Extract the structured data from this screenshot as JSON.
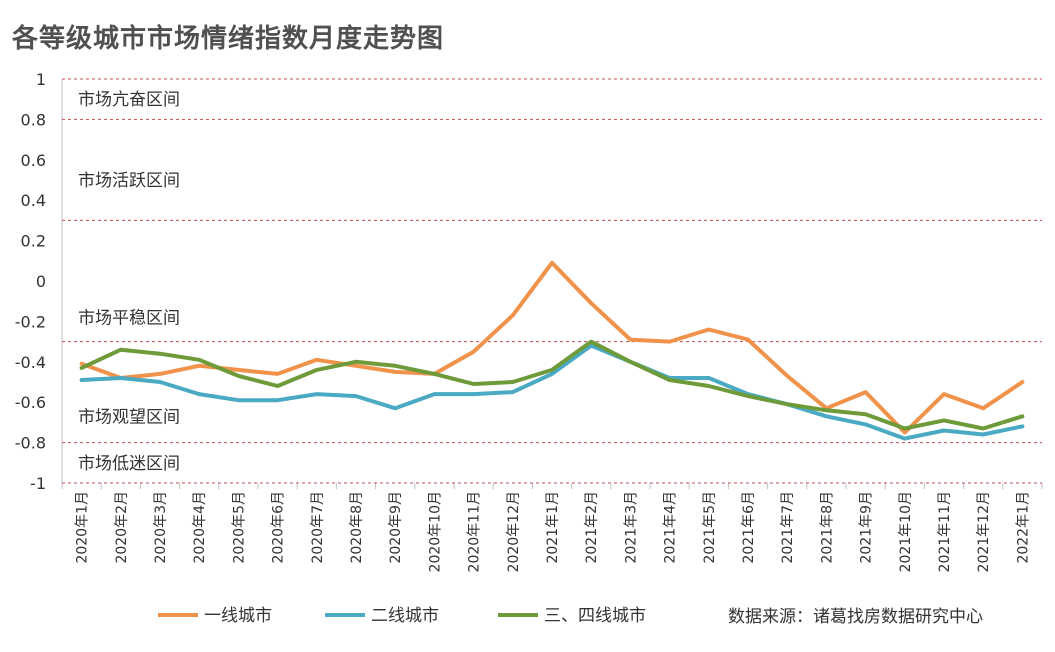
{
  "chart_data": {
    "type": "line",
    "title": "各等级城市市场情绪指数月度走势图",
    "x": [
      "2020年1月",
      "2020年2月",
      "2020年3月",
      "2020年4月",
      "2020年5月",
      "2020年6月",
      "2020年7月",
      "2020年8月",
      "2020年9月",
      "2020年10月",
      "2020年11月",
      "2020年12月",
      "2021年1月",
      "2021年2月",
      "2021年3月",
      "2021年4月",
      "2021年5月",
      "2021年6月",
      "2021年7月",
      "2021年8月",
      "2021年9月",
      "2021年10月",
      "2021年11月",
      "2021年12月",
      "2022年1月"
    ],
    "ylim": [
      -1,
      1
    ],
    "yticks": [
      "1",
      "0.8",
      "0.6",
      "0.4",
      "0.2",
      "0",
      "-0.2",
      "-0.4",
      "-0.6",
      "-0.8",
      "-1"
    ],
    "grid": false,
    "threshold_lines": [
      1,
      0.8,
      0.3,
      -0.3,
      -0.8,
      -1
    ],
    "zones": [
      {
        "label": "市场亢奋区间",
        "y": 0.9
      },
      {
        "label": "市场活跃区间",
        "y": 0.5
      },
      {
        "label": "市场平稳区间",
        "y": -0.18
      },
      {
        "label": "市场观望区间",
        "y": -0.67
      },
      {
        "label": "市场低迷区间",
        "y": -0.9
      }
    ],
    "series": [
      {
        "name": "一线城市",
        "color": "#F0924A",
        "values": [
          -0.41,
          -0.48,
          -0.46,
          -0.42,
          -0.44,
          -0.46,
          -0.39,
          -0.42,
          -0.45,
          -0.46,
          -0.35,
          -0.17,
          0.09,
          -0.11,
          -0.29,
          -0.3,
          -0.24,
          -0.29,
          -0.47,
          -0.63,
          -0.55,
          -0.75,
          -0.56,
          -0.63,
          -0.5
        ]
      },
      {
        "name": "二线城市",
        "color": "#4AAAC3",
        "values": [
          -0.49,
          -0.48,
          -0.5,
          -0.56,
          -0.59,
          -0.59,
          -0.56,
          -0.57,
          -0.63,
          -0.56,
          -0.56,
          -0.55,
          -0.46,
          -0.32,
          -0.4,
          -0.48,
          -0.48,
          -0.56,
          -0.61,
          -0.67,
          -0.71,
          -0.78,
          -0.74,
          -0.76,
          -0.72
        ]
      },
      {
        "name": "三、四线城市",
        "color": "#6E9A3A",
        "values": [
          -0.43,
          -0.34,
          -0.36,
          -0.39,
          -0.47,
          -0.52,
          -0.44,
          -0.4,
          -0.42,
          -0.46,
          -0.51,
          -0.5,
          -0.44,
          -0.3,
          -0.4,
          -0.49,
          -0.52,
          -0.57,
          -0.61,
          -0.64,
          -0.66,
          -0.73,
          -0.69,
          -0.73,
          -0.67
        ]
      }
    ],
    "legend_position": "bottom"
  },
  "source": "数据来源：诸葛找房数据研究中心",
  "watermark": "诸葛找房"
}
